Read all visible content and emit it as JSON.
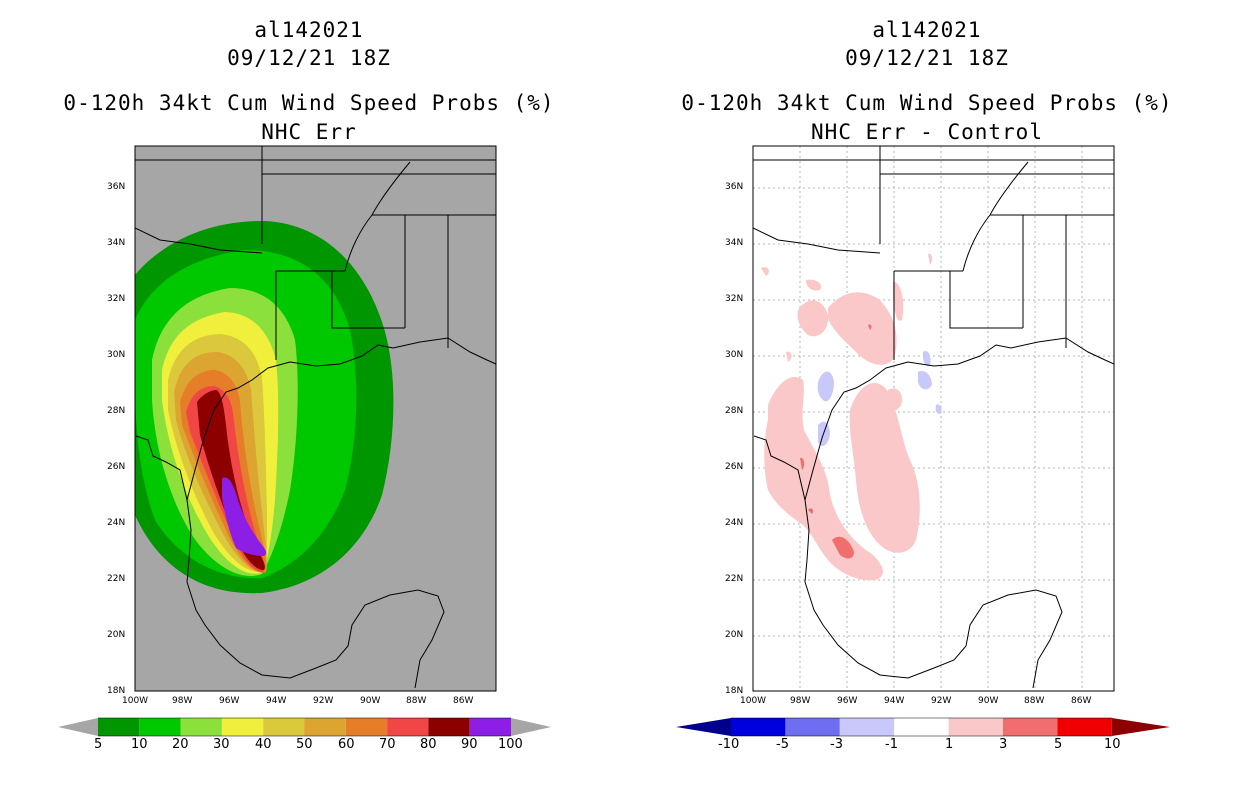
{
  "panels": [
    {
      "storm_id": "al142021",
      "datetime": "09/12/21 18Z",
      "product": "0-120h 34kt Cum Wind Speed Probs (%)",
      "subtitle": "NHC Err",
      "background_color": "#a6a6a6",
      "lat_labels": [
        "36N",
        "34N",
        "32N",
        "30N",
        "28N",
        "26N",
        "24N",
        "22N",
        "20N",
        "18N"
      ],
      "lon_labels": [
        "100W",
        "98W",
        "96W",
        "94W",
        "92W",
        "90W",
        "88W",
        "86W"
      ],
      "colorbar": {
        "labels": [
          "5",
          "10",
          "20",
          "30",
          "40",
          "50",
          "60",
          "70",
          "80",
          "90",
          "100"
        ],
        "colors": [
          "#009600",
          "#00c800",
          "#8ce03c",
          "#f0f03c",
          "#dcc83c",
          "#dca532",
          "#e67d28",
          "#f04646",
          "#8c0000",
          "#8c1ee6"
        ],
        "end_colors": [
          "#a6a6a6",
          "#a6a6a6"
        ]
      }
    },
    {
      "storm_id": "al142021",
      "datetime": "09/12/21 18Z",
      "product": "0-120h 34kt Cum Wind Speed Probs (%)",
      "subtitle": "NHC Err - Control",
      "background_color": "#ffffff",
      "lat_labels": [
        "36N",
        "34N",
        "32N",
        "30N",
        "28N",
        "26N",
        "24N",
        "22N",
        "20N",
        "18N"
      ],
      "lon_labels": [
        "100W",
        "98W",
        "96W",
        "94W",
        "92W",
        "90W",
        "88W",
        "86W"
      ],
      "colorbar": {
        "labels": [
          "-10",
          "-5",
          "-3",
          "-1",
          "1",
          "3",
          "5",
          "10"
        ],
        "colors": [
          "#0000dc",
          "#6e6ef0",
          "#c8c8fa",
          "#ffffff",
          "#fac8c8",
          "#f06e6e",
          "#f00000"
        ],
        "end_colors": [
          "#00008c",
          "#8c0000"
        ]
      }
    }
  ]
}
